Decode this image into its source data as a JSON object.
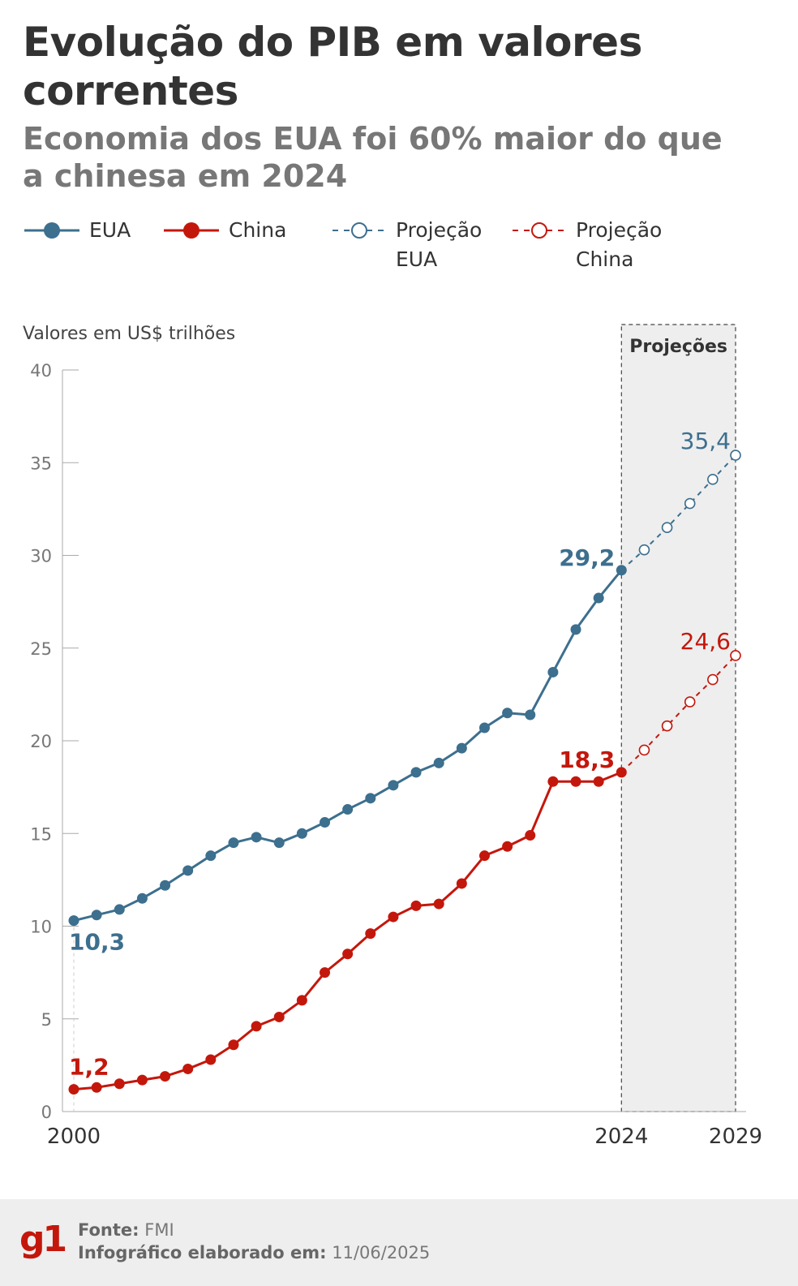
{
  "header": {
    "title": "Evolução do PIB em valores correntes",
    "subtitle": "Economia dos EUA foi 60% maior do que a chinesa em 2024"
  },
  "legend": [
    {
      "label": "EUA",
      "style": "solid",
      "color": "#3d6f8e"
    },
    {
      "label": "China",
      "style": "solid",
      "color": "#c4170c"
    },
    {
      "label": "Projeção\nEUA",
      "style": "dashed",
      "color": "#3d6f8e"
    },
    {
      "label": "Projeção\nChina",
      "style": "dashed",
      "color": "#c4170c"
    }
  ],
  "chart_data": {
    "type": "line",
    "ylabel": "Valores em US$ trilhões",
    "ylim": [
      0,
      40
    ],
    "yticks": [
      0,
      5,
      10,
      15,
      20,
      25,
      30,
      35,
      40
    ],
    "x_tick_labels": [
      {
        "x": 2000,
        "label": "2000"
      },
      {
        "x": 2024,
        "label": "2024"
      },
      {
        "x": 2029,
        "label": "2029"
      }
    ],
    "projection_box": {
      "label": "Projeções",
      "from": 2024,
      "to": 2029
    },
    "series": [
      {
        "name": "EUA",
        "color": "#3d6f8e",
        "style": "solid",
        "x": [
          2000,
          2001,
          2002,
          2003,
          2004,
          2005,
          2006,
          2007,
          2008,
          2009,
          2010,
          2011,
          2012,
          2013,
          2014,
          2015,
          2016,
          2017,
          2018,
          2019,
          2020,
          2021,
          2022,
          2023,
          2024
        ],
        "values": [
          10.3,
          10.6,
          10.9,
          11.5,
          12.2,
          13.0,
          13.8,
          14.5,
          14.8,
          14.5,
          15.0,
          15.6,
          16.3,
          16.9,
          17.6,
          18.3,
          18.8,
          19.6,
          20.7,
          21.5,
          21.4,
          23.7,
          26.0,
          27.7,
          29.2
        ]
      },
      {
        "name": "China",
        "color": "#c4170c",
        "style": "solid",
        "x": [
          2000,
          2001,
          2002,
          2003,
          2004,
          2005,
          2006,
          2007,
          2008,
          2009,
          2010,
          2011,
          2012,
          2013,
          2014,
          2015,
          2016,
          2017,
          2018,
          2019,
          2020,
          2021,
          2022,
          2023,
          2024
        ],
        "values": [
          1.2,
          1.3,
          1.5,
          1.7,
          1.9,
          2.3,
          2.8,
          3.6,
          4.6,
          5.1,
          6.0,
          7.5,
          8.5,
          9.6,
          10.5,
          11.1,
          11.2,
          12.3,
          13.8,
          14.3,
          14.9,
          17.8,
          17.8,
          17.8,
          18.3
        ]
      },
      {
        "name": "Projeção EUA",
        "color": "#3d6f8e",
        "style": "dashed",
        "x": [
          2024,
          2025,
          2026,
          2027,
          2028,
          2029
        ],
        "values": [
          29.2,
          30.3,
          31.5,
          32.8,
          34.1,
          35.4
        ]
      },
      {
        "name": "Projeção China",
        "color": "#c4170c",
        "style": "dashed",
        "x": [
          2024,
          2025,
          2026,
          2027,
          2028,
          2029
        ],
        "values": [
          18.3,
          19.5,
          20.8,
          22.1,
          23.3,
          24.6
        ]
      }
    ],
    "annotations": [
      {
        "series": "EUA",
        "x": 2000,
        "text": "10,3",
        "pos": "below"
      },
      {
        "series": "China",
        "x": 2000,
        "text": "1,2",
        "pos": "above"
      },
      {
        "series": "EUA",
        "x": 2024,
        "text": "29,2",
        "pos": "left"
      },
      {
        "series": "China",
        "x": 2024,
        "text": "18,3",
        "pos": "left"
      },
      {
        "series": "Projeção EUA",
        "x": 2029,
        "text": "35,4",
        "pos": "above-left"
      },
      {
        "series": "Projeção China",
        "x": 2029,
        "text": "24,6",
        "pos": "above-left"
      }
    ]
  },
  "footer": {
    "logo": "g1",
    "source_label": "Fonte:",
    "source_value": "FMI",
    "made_label": "Infográfico elaborado em:",
    "made_value": "11/06/2025"
  }
}
